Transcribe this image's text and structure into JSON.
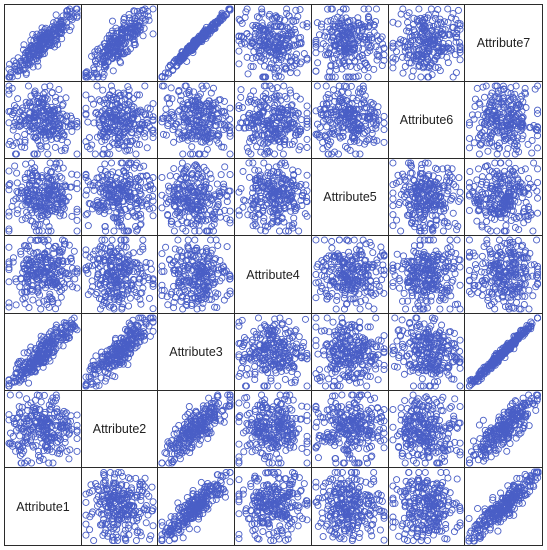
{
  "chart_data": {
    "type": "scatter",
    "title": "",
    "variables": [
      "Attribute1",
      "Attribute2",
      "Attribute3",
      "Attribute4",
      "Attribute5",
      "Attribute6",
      "Attribute7"
    ],
    "diagonal_order": "bottom-left to top-right",
    "marker": "open-circle",
    "marker_color": "#4a5fc6",
    "grid": false,
    "legend": "none",
    "axis_ticks": "none",
    "n_points_per_panel": 260,
    "correlations": [
      [
        1.0,
        0.0,
        0.9,
        0.0,
        0.0,
        0.0,
        0.9
      ],
      [
        0.0,
        1.0,
        0.85,
        0.0,
        0.0,
        0.0,
        0.85
      ],
      [
        0.9,
        0.85,
        1.0,
        0.0,
        0.0,
        0.0,
        0.99
      ],
      [
        0.0,
        0.0,
        0.0,
        1.0,
        0.0,
        0.0,
        0.0
      ],
      [
        0.0,
        0.0,
        0.0,
        0.0,
        1.0,
        0.0,
        0.0
      ],
      [
        0.0,
        0.0,
        0.0,
        0.0,
        0.0,
        1.0,
        0.0
      ],
      [
        0.9,
        0.85,
        0.99,
        0.0,
        0.0,
        0.0,
        1.0
      ]
    ]
  }
}
